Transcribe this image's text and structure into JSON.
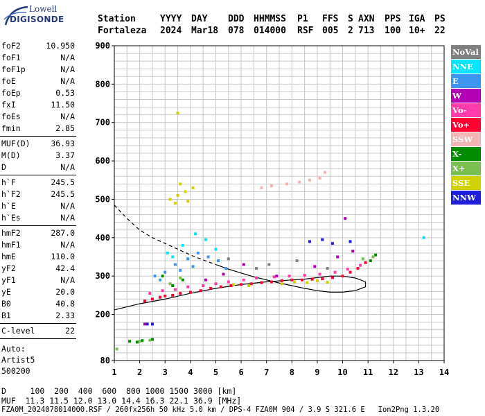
{
  "logo": {
    "line1": "Lowell",
    "line2": "DIGISONDE"
  },
  "header": {
    "labels": [
      "Station",
      "YYYY",
      "DAY",
      "DDD",
      "HHMMSS",
      "P1",
      "FFS",
      "S",
      "AXN",
      "PPS",
      "IGA",
      "PS"
    ],
    "values": [
      "Fortaleza",
      "2024",
      "Mar18",
      "078",
      "014000",
      "RSF",
      "005",
      "2",
      "713",
      "100",
      "10+",
      "22"
    ]
  },
  "sidebar": {
    "group1": [
      {
        "label": "foF2",
        "value": "10.950"
      },
      {
        "label": "foF1",
        "value": "N/A"
      },
      {
        "label": "foF1p",
        "value": "N/A"
      },
      {
        "label": "foE",
        "value": "N/A"
      },
      {
        "label": "foEp",
        "value": "0.53"
      },
      {
        "label": "fxI",
        "value": "11.50"
      },
      {
        "label": "foEs",
        "value": "N/A"
      },
      {
        "label": "fmin",
        "value": "2.85"
      }
    ],
    "group2": [
      {
        "label": "MUF(D)",
        "value": "36.93"
      },
      {
        "label": "M(D)",
        "value": "3.37"
      },
      {
        "label": "D",
        "value": "N/A"
      }
    ],
    "group3": [
      {
        "label": "h`F",
        "value": "245.5"
      },
      {
        "label": "h`F2",
        "value": "245.5"
      },
      {
        "label": "h`E",
        "value": "N/A"
      },
      {
        "label": "h`Es",
        "value": "N/A"
      }
    ],
    "group4": [
      {
        "label": "hmF2",
        "value": "287.0"
      },
      {
        "label": "hmF1",
        "value": "N/A"
      },
      {
        "label": "hmE",
        "value": "110.0"
      },
      {
        "label": "yF2",
        "value": "42.4"
      },
      {
        "label": "yF1",
        "value": "N/A"
      },
      {
        "label": "yE",
        "value": "20.0"
      },
      {
        "label": "B0",
        "value": "40.8"
      },
      {
        "label": "B1",
        "value": "2.33"
      }
    ],
    "clevel": {
      "label": "C-level",
      "value": "22"
    },
    "auto": [
      "Auto:",
      "Artist5",
      "500200"
    ]
  },
  "legend": [
    {
      "label": "NoVal",
      "color": "#808080"
    },
    {
      "label": "NNE",
      "color": "#00e6ff"
    },
    {
      "label": "E",
      "color": "#3c96f0"
    },
    {
      "label": "W",
      "color": "#b400b4"
    },
    {
      "label": "Vo-",
      "color": "#ff3caa"
    },
    {
      "label": "Vo+",
      "color": "#ff0032"
    },
    {
      "label": "SSW",
      "color": "#f5b4b4"
    },
    {
      "label": "X-",
      "color": "#008c00"
    },
    {
      "label": "X+",
      "color": "#78be50"
    },
    {
      "label": "SSE",
      "color": "#d2d200"
    },
    {
      "label": "NNW",
      "color": "#1e1edc"
    }
  ],
  "footer": {
    "d_line": "D     100  200  400  600  800 1000 1500 3000 [km]",
    "muf_line": "MUF  11.3 11.5 12.0 13.0 14.4 16.3 22.1 36.9 [MHz]",
    "file_line": "FZA0M_2024078014000.RSF / 260fx256h 50 kHz 5.0 km / DPS-4 FZA0M 904 / 3.9 S 321.6 E   Ion2Png 1.3.20"
  },
  "chart_data": {
    "type": "scatter",
    "xlim": [
      1,
      14
    ],
    "ylim": [
      80,
      900
    ],
    "x_ticks": [
      1,
      2,
      3,
      4,
      5,
      6,
      7,
      8,
      9,
      10,
      11,
      12,
      13,
      14
    ],
    "y_ticks": [
      80,
      200,
      300,
      400,
      500,
      600,
      700,
      800,
      900
    ],
    "y_tick_labels": [
      "80",
      "200",
      "300",
      "400",
      "500",
      "600",
      "700",
      "800",
      "900"
    ],
    "grid": true,
    "x_unit": "MHz",
    "y_unit": "km",
    "series": [
      {
        "color": "#ff0032",
        "points": [
          [
            2.2,
            235
          ],
          [
            2.5,
            240
          ],
          [
            2.8,
            245
          ],
          [
            3.0,
            248
          ],
          [
            3.3,
            250
          ],
          [
            3.6,
            255
          ],
          [
            4.0,
            258
          ],
          [
            4.4,
            262
          ],
          [
            4.8,
            268
          ],
          [
            5.2,
            272
          ],
          [
            5.6,
            275
          ],
          [
            6.0,
            278
          ],
          [
            6.4,
            280
          ],
          [
            6.8,
            283
          ],
          [
            7.2,
            285
          ],
          [
            7.6,
            288
          ],
          [
            8.0,
            290
          ],
          [
            8.4,
            290
          ],
          [
            8.8,
            292
          ],
          [
            9.2,
            293
          ],
          [
            9.6,
            296
          ],
          [
            10.0,
            300
          ],
          [
            10.3,
            310
          ],
          [
            10.6,
            320
          ],
          [
            10.9,
            335
          ]
        ]
      },
      {
        "color": "#ff3caa",
        "points": [
          [
            2.4,
            255
          ],
          [
            2.9,
            262
          ],
          [
            3.4,
            265
          ],
          [
            3.9,
            272
          ],
          [
            4.5,
            275
          ],
          [
            5.0,
            280
          ],
          [
            5.5,
            285
          ],
          [
            6.1,
            290
          ],
          [
            6.6,
            295
          ],
          [
            7.3,
            298
          ],
          [
            7.9,
            300
          ],
          [
            8.5,
            302
          ],
          [
            9.1,
            305
          ],
          [
            9.7,
            310
          ],
          [
            10.2,
            318
          ],
          [
            10.7,
            328
          ]
        ]
      },
      {
        "color": "#d2d200",
        "points": [
          [
            3.2,
            500
          ],
          [
            3.5,
            510
          ],
          [
            3.8,
            520
          ],
          [
            3.4,
            490
          ],
          [
            3.9,
            495
          ],
          [
            4.1,
            530
          ],
          [
            3.6,
            540
          ],
          [
            7.6,
            280
          ],
          [
            8.1,
            285
          ],
          [
            8.6,
            283
          ],
          [
            9.0,
            288
          ],
          [
            9.4,
            284
          ],
          [
            6.3,
            275
          ],
          [
            5.7,
            278
          ],
          [
            3.5,
            725
          ]
        ]
      },
      {
        "color": "#3c96f0",
        "points": [
          [
            2.6,
            300
          ],
          [
            3.0,
            310
          ],
          [
            3.4,
            330
          ],
          [
            3.9,
            345
          ],
          [
            4.3,
            360
          ],
          [
            4.7,
            350
          ],
          [
            5.1,
            340
          ],
          [
            2.8,
            290
          ],
          [
            3.6,
            315
          ],
          [
            4.1,
            325
          ],
          [
            5.4,
            320
          ]
        ]
      },
      {
        "color": "#00e6ff",
        "points": [
          [
            3.1,
            360
          ],
          [
            3.7,
            380
          ],
          [
            4.2,
            410
          ],
          [
            4.6,
            395
          ],
          [
            5.0,
            370
          ],
          [
            3.3,
            350
          ],
          [
            13.2,
            400
          ]
        ]
      },
      {
        "color": "#b400b4",
        "points": [
          [
            4.6,
            290
          ],
          [
            5.3,
            305
          ],
          [
            6.1,
            330
          ],
          [
            7.4,
            300
          ],
          [
            8.9,
            325
          ],
          [
            9.8,
            350
          ],
          [
            10.4,
            365
          ],
          [
            2.2,
            175
          ],
          [
            10.1,
            450
          ]
        ]
      },
      {
        "color": "#008c00",
        "points": [
          [
            1.6,
            130
          ],
          [
            1.9,
            128
          ],
          [
            2.1,
            132
          ],
          [
            2.5,
            135
          ],
          [
            2.9,
            300
          ],
          [
            3.3,
            275
          ],
          [
            3.7,
            290
          ],
          [
            11.1,
            340
          ],
          [
            11.3,
            355
          ]
        ]
      },
      {
        "color": "#78be50",
        "points": [
          [
            2.0,
            130
          ],
          [
            2.4,
            133
          ],
          [
            3.2,
            280
          ],
          [
            3.6,
            295
          ],
          [
            10.8,
            345
          ],
          [
            11.2,
            350
          ],
          [
            1.1,
            110
          ]
        ]
      },
      {
        "color": "#f5b4b4",
        "points": [
          [
            6.8,
            530
          ],
          [
            7.2,
            535
          ],
          [
            7.8,
            540
          ],
          [
            8.3,
            545
          ],
          [
            8.7,
            550
          ],
          [
            9.1,
            555
          ],
          [
            9.3,
            570
          ]
        ]
      },
      {
        "color": "#1e1edc",
        "points": [
          [
            2.3,
            175
          ],
          [
            2.5,
            175
          ],
          [
            8.7,
            390
          ],
          [
            9.2,
            395
          ],
          [
            9.6,
            385
          ],
          [
            10.3,
            390
          ]
        ]
      },
      {
        "color": "#808080",
        "points": [
          [
            5.5,
            345
          ],
          [
            6.6,
            320
          ],
          [
            7.1,
            330
          ],
          [
            8.2,
            340
          ],
          [
            9.4,
            320
          ]
        ]
      }
    ],
    "profile_curve": [
      [
        1.0,
        485
      ],
      [
        1.5,
        450
      ],
      [
        2.0,
        420
      ],
      [
        2.5,
        400
      ],
      [
        3.0,
        385
      ],
      [
        3.5,
        370
      ],
      [
        4.0,
        355
      ],
      [
        4.5,
        342
      ],
      [
        5.0,
        330
      ],
      [
        5.5,
        318
      ],
      [
        6.0,
        308
      ],
      [
        6.5,
        298
      ],
      [
        7.0,
        290
      ],
      [
        7.5,
        282
      ],
      [
        8.0,
        275
      ],
      [
        8.5,
        268
      ],
      [
        9.0,
        262
      ],
      [
        9.5,
        258
      ],
      [
        10.0,
        258
      ],
      [
        10.5,
        262
      ],
      [
        10.9,
        272
      ],
      [
        10.9,
        285
      ],
      [
        10.5,
        295
      ],
      [
        10.0,
        300
      ],
      [
        9.5,
        300
      ],
      [
        9.0,
        296
      ],
      [
        8.5,
        292
      ],
      [
        8.0,
        290
      ],
      [
        7.0,
        285
      ],
      [
        6.0,
        278
      ],
      [
        5.0,
        268
      ],
      [
        4.0,
        255
      ],
      [
        3.0,
        240
      ],
      [
        2.0,
        228
      ],
      [
        1.0,
        212
      ]
    ]
  }
}
